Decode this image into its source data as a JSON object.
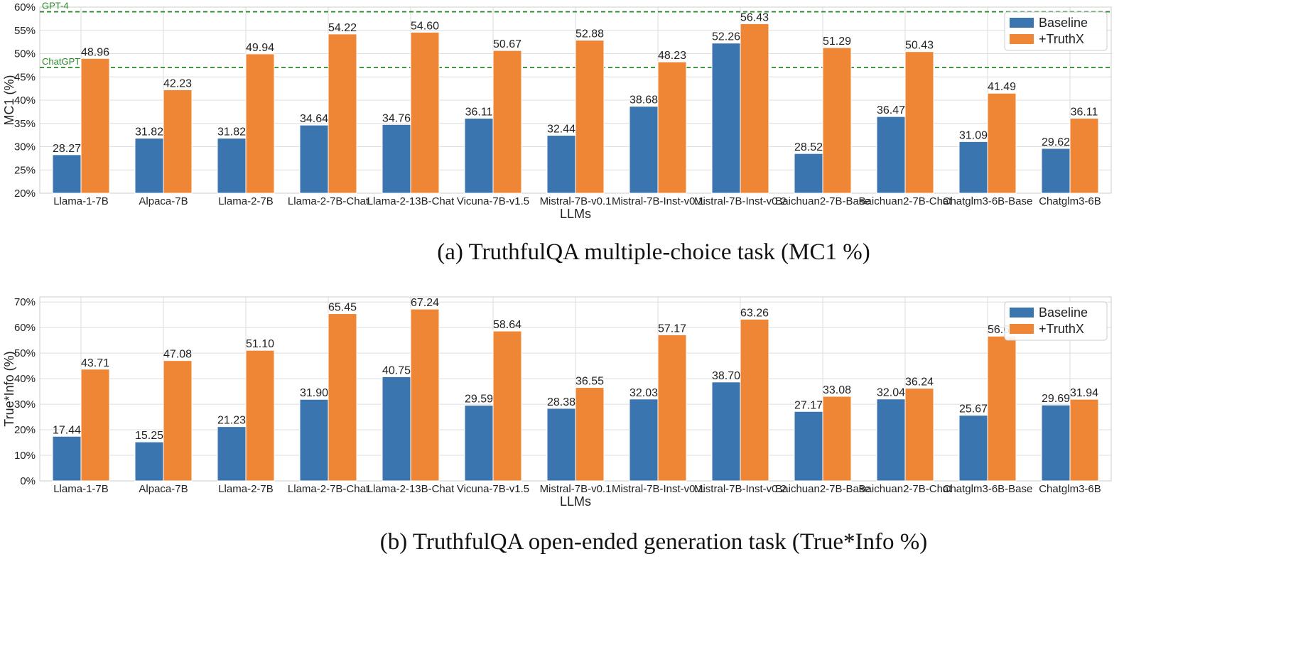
{
  "colors": {
    "baseline": "#3b75af",
    "truthx": "#ef8636",
    "reference": "#2a8a2a",
    "grid": "#dddddd",
    "frame": "#cccccc"
  },
  "chart_data": [
    {
      "type": "bar",
      "caption": "(a)  TruthfulQA multiple-choice task (MC1 %)",
      "xlabel": "LLMs",
      "ylabel": "MC1 (%)",
      "ylim": [
        20,
        60
      ],
      "yticks": [
        "20%",
        "25%",
        "30%",
        "35%",
        "40%",
        "45%",
        "50%",
        "55%",
        "60%"
      ],
      "yticks_values": [
        20,
        25,
        30,
        35,
        40,
        45,
        50,
        55,
        60
      ],
      "grid": true,
      "legend_position": "top-right",
      "categories": [
        "Llama-1-7B",
        "Alpaca-7B",
        "Llama-2-7B",
        "Llama-2-7B-Chat",
        "Llama-2-13B-Chat",
        "Vicuna-7B-v1.5",
        "Mistral-7B-v0.1",
        "Mistral-7B-Inst-v0.1",
        "Mistral-7B-Inst-v0.2",
        "Baichuan2-7B-Base",
        "Baichuan2-7B-Chat",
        "Chatglm3-6B-Base",
        "Chatglm3-6B"
      ],
      "series": [
        {
          "name": "Baseline",
          "values": [
            28.27,
            31.82,
            31.82,
            34.64,
            34.76,
            36.11,
            32.44,
            38.68,
            52.26,
            28.52,
            36.47,
            31.09,
            29.62
          ],
          "labels": [
            "28.27",
            "31.82",
            "31.82",
            "34.64",
            "34.76",
            "36.11",
            "32.44",
            "38.68",
            "52.26",
            "28.52",
            "36.47",
            "31.09",
            "29.62"
          ]
        },
        {
          "name": "+TruthX",
          "values": [
            48.96,
            42.23,
            49.94,
            54.22,
            54.6,
            50.67,
            52.88,
            48.23,
            56.43,
            51.29,
            50.43,
            41.49,
            36.11
          ],
          "labels": [
            "48.96",
            "42.23",
            "49.94",
            "54.22",
            "54.60",
            "50.67",
            "52.88",
            "48.23",
            "56.43",
            "51.29",
            "50.43",
            "41.49",
            "36.11"
          ]
        }
      ],
      "reference_lines": [
        {
          "label": "GPT-4",
          "value": 59.0
        },
        {
          "label": "ChatGPT",
          "value": 47.0
        }
      ]
    },
    {
      "type": "bar",
      "caption": "(b)  TruthfulQA open-ended generation task (True*Info %)",
      "xlabel": "LLMs",
      "ylabel": "True*Info (%)",
      "ylim": [
        0,
        72
      ],
      "yticks": [
        "0%",
        "10%",
        "20%",
        "30%",
        "40%",
        "50%",
        "60%",
        "70%"
      ],
      "yticks_values": [
        0,
        10,
        20,
        30,
        40,
        50,
        60,
        70
      ],
      "grid": true,
      "legend_position": "top-right",
      "categories": [
        "Llama-1-7B",
        "Alpaca-7B",
        "Llama-2-7B",
        "Llama-2-7B-Chat",
        "Llama-2-13B-Chat",
        "Vicuna-7B-v1.5",
        "Mistral-7B-v0.1",
        "Mistral-7B-Inst-v0.1",
        "Mistral-7B-Inst-v0.2",
        "Baichuan2-7B-Base",
        "Baichuan2-7B-Chat",
        "Chatglm3-6B-Base",
        "Chatglm3-6B"
      ],
      "series": [
        {
          "name": "Baseline",
          "values": [
            17.44,
            15.25,
            21.23,
            31.9,
            40.75,
            29.59,
            28.38,
            32.03,
            38.7,
            27.17,
            32.04,
            25.67,
            29.69
          ],
          "labels": [
            "17.44",
            "15.25",
            "21.23",
            "31.90",
            "40.75",
            "29.59",
            "28.38",
            "32.03",
            "38.70",
            "27.17",
            "32.04",
            "25.67",
            "29.69"
          ]
        },
        {
          "name": "+TruthX",
          "values": [
            43.71,
            47.08,
            51.1,
            65.45,
            67.24,
            58.64,
            36.55,
            57.17,
            63.26,
            33.08,
            36.24,
            56.65,
            31.94
          ],
          "labels": [
            "43.71",
            "47.08",
            "51.10",
            "65.45",
            "67.24",
            "58.64",
            "36.55",
            "57.17",
            "63.26",
            "33.08",
            "36.24",
            "56.65",
            "31.94"
          ]
        }
      ],
      "reference_lines": []
    }
  ]
}
